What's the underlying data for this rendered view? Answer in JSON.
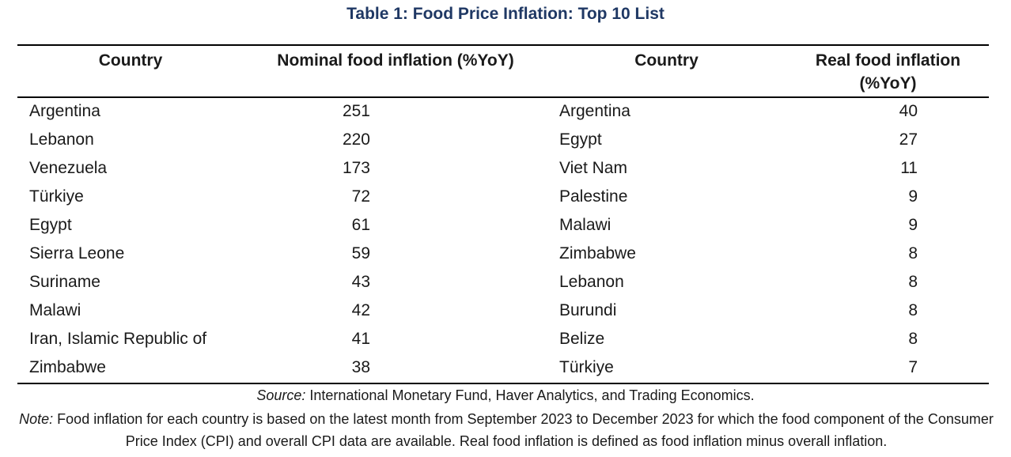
{
  "title": "Table 1: Food Price Inflation: Top 10 List",
  "headers": {
    "country_left": "Country",
    "nominal": "Nominal food inflation (%YoY)",
    "country_right": "Country",
    "real_line1": "Real food inflation",
    "real_line2": "(%YoY)"
  },
  "nominal_rows": [
    {
      "country": "Argentina",
      "value": "251"
    },
    {
      "country": "Lebanon",
      "value": "220"
    },
    {
      "country": "Venezuela",
      "value": "173"
    },
    {
      "country": "Türkiye",
      "value": "72"
    },
    {
      "country": "Egypt",
      "value": "61"
    },
    {
      "country": "Sierra Leone",
      "value": "59"
    },
    {
      "country": "Suriname",
      "value": "43"
    },
    {
      "country": "Malawi",
      "value": "42"
    },
    {
      "country": "Iran, Islamic Republic of",
      "value": "41"
    },
    {
      "country": "Zimbabwe",
      "value": "38"
    }
  ],
  "real_rows": [
    {
      "country": "Argentina",
      "value": "40"
    },
    {
      "country": "Egypt",
      "value": "27"
    },
    {
      "country": "Viet Nam",
      "value": "11"
    },
    {
      "country": "Palestine",
      "value": "9"
    },
    {
      "country": "Malawi",
      "value": "9"
    },
    {
      "country": "Zimbabwe",
      "value": "8"
    },
    {
      "country": "Lebanon",
      "value": "8"
    },
    {
      "country": "Burundi",
      "value": "8"
    },
    {
      "country": "Belize",
      "value": "8"
    },
    {
      "country": "Türkiye",
      "value": "7"
    }
  ],
  "source": {
    "label": "Source:",
    "text": "International Monetary Fund, Haver Analytics, and Trading Economics."
  },
  "note": {
    "label": "Note:",
    "text": "Food inflation for each country is based on the latest month from September 2023 to December 2023 for which the food component of the Consumer Price Index (CPI) and overall CPI data are available. Real food inflation is defined as food inflation minus overall inflation."
  },
  "colors": {
    "title": "#1f3864",
    "text": "#1a1a1a",
    "rule": "#000000"
  }
}
